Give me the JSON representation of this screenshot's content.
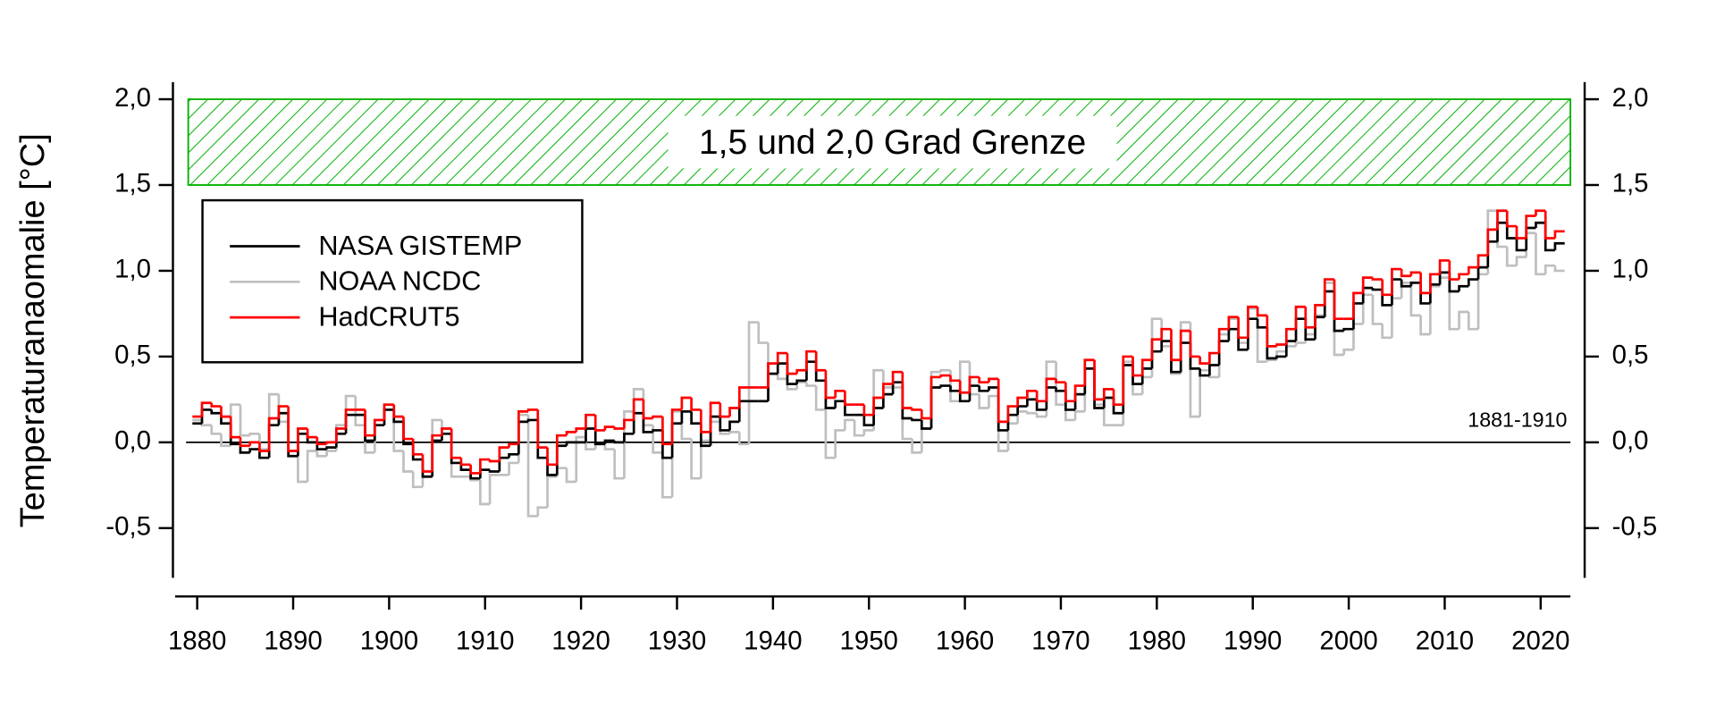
{
  "chart_data": {
    "type": "line",
    "y_label": "Temperaturanaomalie [°C]",
    "x": [
      1880,
      1881,
      1882,
      1883,
      1884,
      1885,
      1886,
      1887,
      1888,
      1889,
      1890,
      1891,
      1892,
      1893,
      1894,
      1895,
      1896,
      1897,
      1898,
      1899,
      1900,
      1901,
      1902,
      1903,
      1904,
      1905,
      1906,
      1907,
      1908,
      1909,
      1910,
      1911,
      1912,
      1913,
      1914,
      1915,
      1916,
      1917,
      1918,
      1919,
      1920,
      1921,
      1922,
      1923,
      1924,
      1925,
      1926,
      1927,
      1928,
      1929,
      1930,
      1931,
      1932,
      1933,
      1934,
      1935,
      1936,
      1937,
      1938,
      1939,
      1940,
      1941,
      1942,
      1943,
      1944,
      1945,
      1946,
      1947,
      1948,
      1949,
      1950,
      1951,
      1952,
      1953,
      1954,
      1955,
      1956,
      1957,
      1958,
      1959,
      1960,
      1961,
      1962,
      1963,
      1964,
      1965,
      1966,
      1967,
      1968,
      1969,
      1970,
      1971,
      1972,
      1973,
      1974,
      1975,
      1976,
      1977,
      1978,
      1979,
      1980,
      1981,
      1982,
      1983,
      1984,
      1985,
      1986,
      1987,
      1988,
      1989,
      1990,
      1991,
      1992,
      1993,
      1994,
      1995,
      1996,
      1997,
      1998,
      1999,
      2000,
      2001,
      2002,
      2003,
      2004,
      2005,
      2006,
      2007,
      2008,
      2009,
      2010,
      2011,
      2012,
      2013,
      2014,
      2015,
      2016,
      2017,
      2018,
      2019,
      2020,
      2021,
      2022
    ],
    "series": [
      {
        "name": "NASA GISTEMP",
        "color": "#000000",
        "values": [
          0.11,
          0.19,
          0.17,
          0.11,
          -0.01,
          -0.06,
          -0.04,
          -0.09,
          0.1,
          0.17,
          -0.08,
          0.05,
          0.0,
          -0.04,
          -0.03,
          0.05,
          0.16,
          0.16,
          0.01,
          0.1,
          0.19,
          0.12,
          -0.01,
          -0.1,
          -0.2,
          0.01,
          0.05,
          -0.12,
          -0.16,
          -0.21,
          -0.16,
          -0.17,
          -0.09,
          -0.07,
          0.12,
          0.13,
          -0.09,
          -0.19,
          -0.02,
          0.0,
          0.0,
          0.08,
          -0.01,
          0.01,
          0.0,
          0.05,
          0.17,
          0.06,
          0.07,
          -0.09,
          0.11,
          0.18,
          0.11,
          -0.02,
          0.15,
          0.07,
          0.12,
          0.24,
          0.24,
          0.24,
          0.4,
          0.46,
          0.34,
          0.36,
          0.47,
          0.36,
          0.2,
          0.24,
          0.16,
          0.16,
          0.1,
          0.2,
          0.28,
          0.35,
          0.14,
          0.13,
          0.08,
          0.32,
          0.33,
          0.3,
          0.24,
          0.33,
          0.3,
          0.32,
          0.07,
          0.16,
          0.21,
          0.25,
          0.19,
          0.32,
          0.3,
          0.19,
          0.28,
          0.43,
          0.2,
          0.26,
          0.17,
          0.45,
          0.34,
          0.43,
          0.53,
          0.59,
          0.41,
          0.58,
          0.43,
          0.39,
          0.45,
          0.59,
          0.66,
          0.54,
          0.72,
          0.67,
          0.49,
          0.5,
          0.59,
          0.72,
          0.6,
          0.73,
          0.88,
          0.65,
          0.66,
          0.81,
          0.9,
          0.89,
          0.8,
          0.95,
          0.91,
          0.93,
          0.81,
          0.92,
          0.99,
          0.88,
          0.91,
          0.95,
          1.02,
          1.17,
          1.28,
          1.19,
          1.12,
          1.25,
          1.28,
          1.12,
          1.16
        ]
      },
      {
        "name": "NOAA NCDC",
        "color": "#bfbfbf",
        "values": [
          0.13,
          0.1,
          0.05,
          -0.02,
          0.22,
          0.04,
          0.05,
          -0.04,
          0.28,
          0.12,
          -0.05,
          -0.23,
          -0.05,
          -0.08,
          -0.05,
          0.1,
          0.27,
          0.1,
          -0.06,
          0.13,
          0.22,
          -0.05,
          -0.17,
          -0.26,
          -0.2,
          0.13,
          0.08,
          -0.2,
          -0.2,
          -0.22,
          -0.36,
          -0.19,
          -0.19,
          -0.12,
          0.16,
          -0.43,
          -0.38,
          -0.2,
          -0.15,
          -0.23,
          0.03,
          -0.04,
          -0.01,
          -0.04,
          -0.21,
          0.18,
          0.31,
          0.1,
          -0.06,
          -0.32,
          0.18,
          0.02,
          -0.21,
          0.01,
          0.12,
          0.05,
          0.06,
          -0.01,
          0.7,
          0.58,
          0.4,
          0.37,
          0.31,
          0.35,
          0.33,
          0.19,
          -0.09,
          0.07,
          0.13,
          0.04,
          0.07,
          0.42,
          0.32,
          0.32,
          0.02,
          -0.06,
          0.08,
          0.41,
          0.42,
          0.24,
          0.47,
          0.28,
          0.2,
          0.27,
          -0.05,
          0.11,
          0.18,
          0.17,
          0.15,
          0.47,
          0.22,
          0.13,
          0.18,
          0.48,
          0.22,
          0.1,
          0.1,
          0.47,
          0.28,
          0.38,
          0.72,
          0.56,
          0.4,
          0.7,
          0.15,
          0.42,
          0.38,
          0.63,
          0.72,
          0.58,
          0.78,
          0.47,
          0.48,
          0.53,
          0.56,
          0.58,
          0.63,
          0.74,
          0.93,
          0.51,
          0.54,
          0.69,
          0.86,
          0.69,
          0.61,
          0.84,
          0.93,
          0.74,
          0.63,
          0.91,
          0.96,
          0.66,
          0.76,
          0.66,
          0.98,
          1.35,
          1.14,
          1.03,
          1.08,
          1.22,
          0.98,
          1.03,
          1.0
        ]
      },
      {
        "name": "HadCRUT5",
        "color": "#ff0000",
        "values": [
          0.15,
          0.23,
          0.21,
          0.15,
          0.03,
          -0.02,
          0.0,
          -0.05,
          0.14,
          0.21,
          -0.05,
          0.08,
          0.03,
          -0.01,
          0.0,
          0.08,
          0.19,
          0.19,
          0.04,
          0.13,
          0.22,
          0.15,
          0.02,
          -0.07,
          -0.17,
          0.04,
          0.08,
          -0.09,
          -0.13,
          -0.18,
          -0.1,
          -0.11,
          -0.03,
          -0.01,
          0.18,
          0.19,
          -0.03,
          -0.13,
          0.04,
          0.06,
          0.08,
          0.16,
          0.07,
          0.09,
          0.08,
          0.13,
          0.25,
          0.14,
          0.15,
          -0.01,
          0.19,
          0.26,
          0.19,
          0.06,
          0.23,
          0.15,
          0.2,
          0.32,
          0.32,
          0.32,
          0.46,
          0.52,
          0.4,
          0.42,
          0.53,
          0.42,
          0.26,
          0.3,
          0.22,
          0.22,
          0.16,
          0.26,
          0.34,
          0.41,
          0.2,
          0.19,
          0.14,
          0.38,
          0.39,
          0.36,
          0.29,
          0.38,
          0.35,
          0.37,
          0.12,
          0.21,
          0.26,
          0.3,
          0.24,
          0.37,
          0.35,
          0.24,
          0.33,
          0.48,
          0.25,
          0.31,
          0.22,
          0.5,
          0.39,
          0.48,
          0.6,
          0.66,
          0.48,
          0.65,
          0.5,
          0.46,
          0.52,
          0.66,
          0.73,
          0.61,
          0.79,
          0.74,
          0.56,
          0.57,
          0.66,
          0.79,
          0.67,
          0.8,
          0.95,
          0.72,
          0.72,
          0.87,
          0.96,
          0.95,
          0.86,
          1.01,
          0.97,
          0.99,
          0.87,
          0.98,
          1.06,
          0.95,
          0.98,
          1.02,
          1.09,
          1.24,
          1.35,
          1.26,
          1.19,
          1.32,
          1.35,
          1.19,
          1.23
        ]
      }
    ],
    "xlim": [
      1877.7,
      2023.1
    ],
    "xticks": [
      1880,
      1890,
      1900,
      1910,
      1920,
      1930,
      1940,
      1950,
      1960,
      1970,
      1980,
      1990,
      2000,
      2010,
      2020
    ],
    "ylim": [
      -0.79,
      2.1
    ],
    "yticks": [
      {
        "value": -0.5,
        "label": "-0,5"
      },
      {
        "value": 0,
        "label": "0,0"
      },
      {
        "value": 0.5,
        "label": "0,5"
      },
      {
        "value": 1,
        "label": "1,0"
      },
      {
        "value": 1.5,
        "label": "1,5"
      },
      {
        "value": 2,
        "label": "2,0"
      }
    ],
    "y2lim": [
      -0.79,
      2.1
    ],
    "y2ticks": [
      {
        "value": -0.5,
        "label": "-0,5"
      },
      {
        "value": 0,
        "label": "0,0"
      },
      {
        "value": 0.5,
        "label": "0,5"
      },
      {
        "value": 1,
        "label": "1,0"
      },
      {
        "value": 1.5,
        "label": "1,5"
      },
      {
        "value": 2,
        "label": "2,0"
      }
    ],
    "band": {
      "ymin": 1.5,
      "ymax": 2.0,
      "label": "1,5 und 2,0 Grad Grenze",
      "color": "#00b000"
    },
    "reference_line": {
      "value": 0,
      "label": "1881-1910"
    },
    "legend": "upper left",
    "grid": false
  }
}
